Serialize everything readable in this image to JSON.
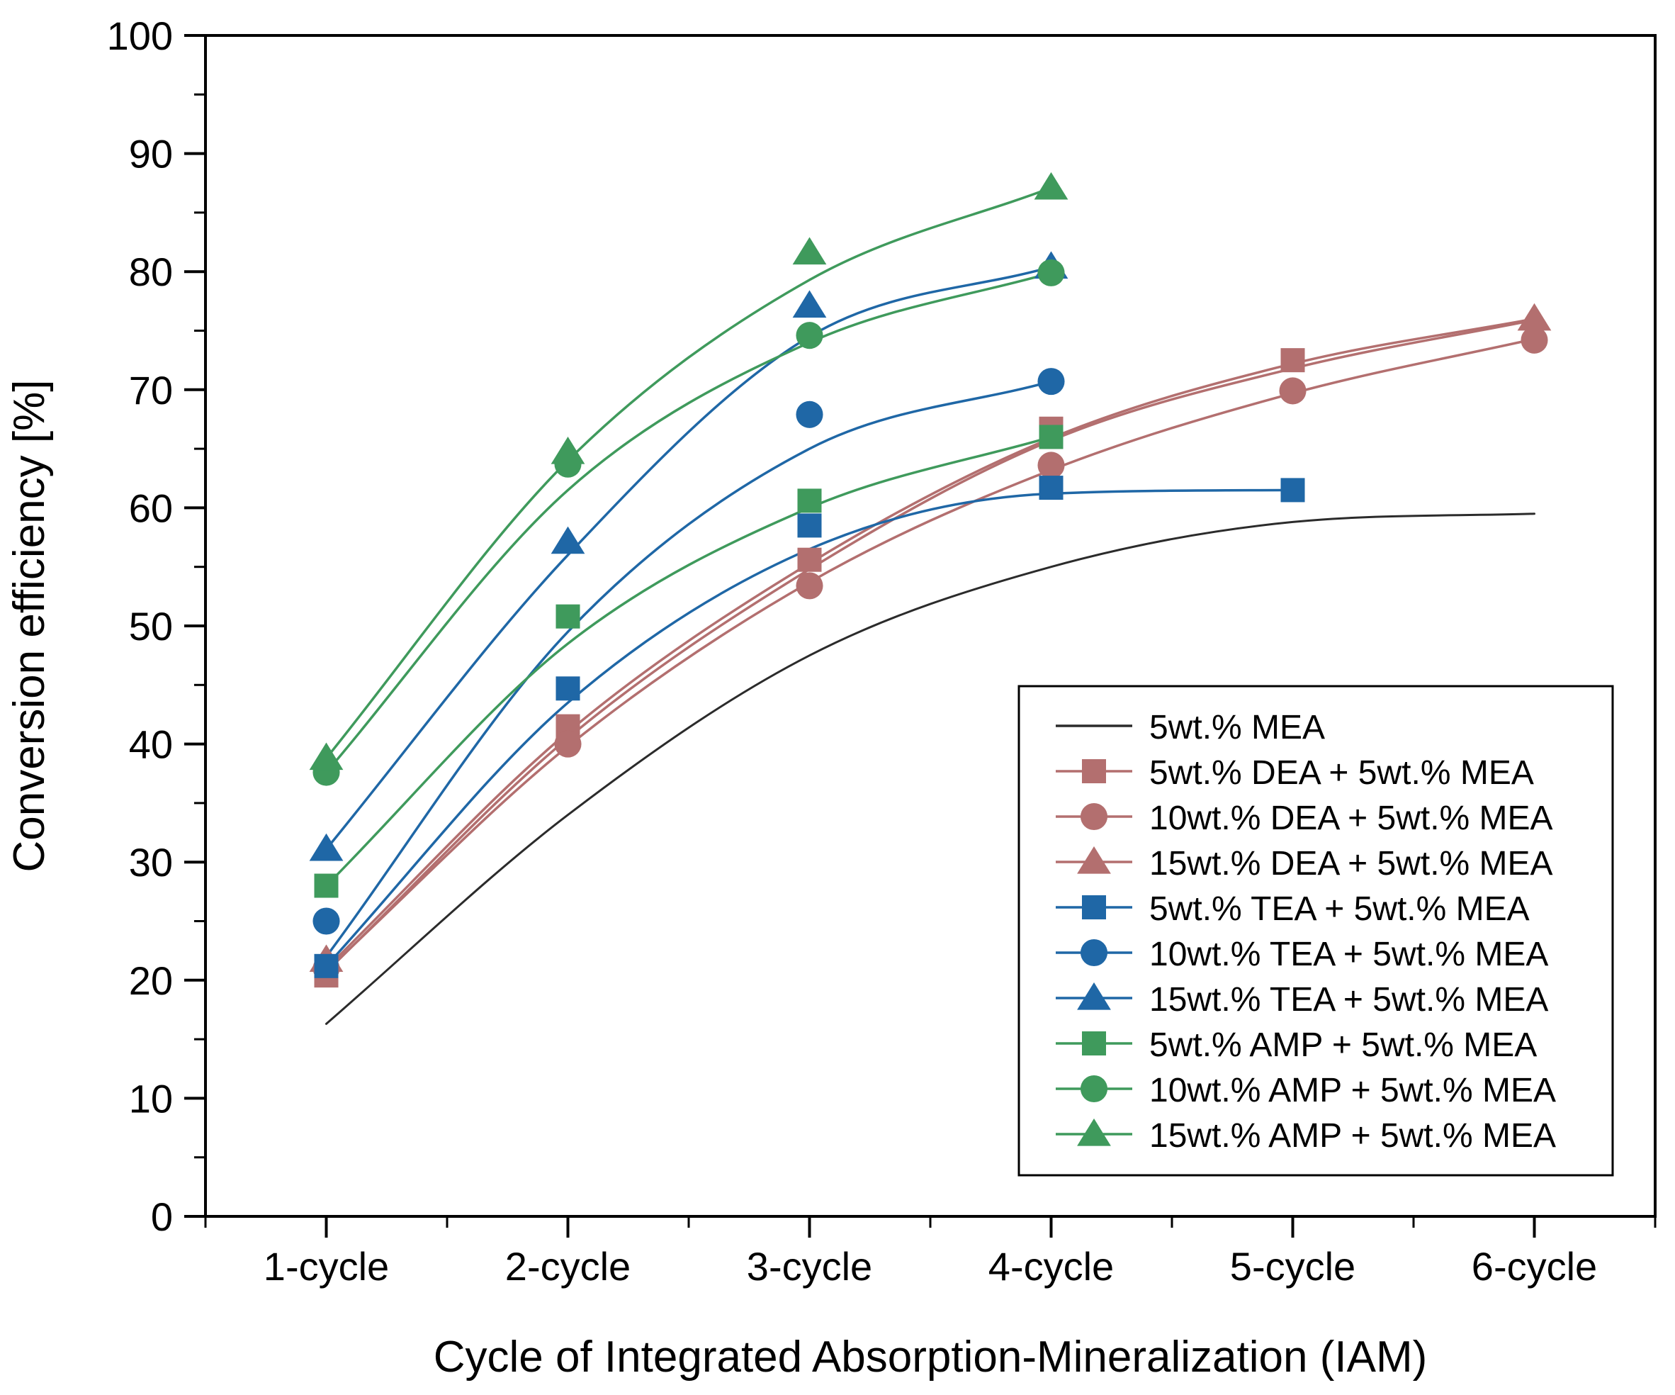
{
  "chart_data": {
    "type": "line",
    "title": "",
    "xlabel": "Cycle of Integrated Absorption-Mineralization (IAM)",
    "ylabel": "Conversion efficiency [%]",
    "categories": [
      "1-cycle",
      "2-cycle",
      "3-cycle",
      "4-cycle",
      "5-cycle",
      "6-cycle"
    ],
    "xlim": [
      0.5,
      6.5
    ],
    "ylim": [
      0,
      100
    ],
    "yticks": [
      "0",
      "10",
      "20",
      "30",
      "40",
      "50",
      "60",
      "70",
      "80",
      "90",
      "100"
    ],
    "grid": false,
    "legend_position": "bottom-right",
    "colors": {
      "black": "#2b2b2b",
      "red": "#b36f6f",
      "blue": "#1f67a6",
      "green": "#3f9a5c"
    },
    "series": [
      {
        "name": "5wt.% MEA",
        "color": "#2b2b2b",
        "marker": "none",
        "fit": [
          16.3,
          34.0,
          47.5,
          55.0,
          58.8,
          59.5
        ],
        "fit_end": 6.0
      },
      {
        "name": "5wt.% DEA + 5wt.% MEA",
        "color": "#b36f6f",
        "marker": "square",
        "x": [
          1,
          2,
          3,
          4,
          5
        ],
        "values": [
          20.4,
          41.5,
          55.6,
          66.7,
          72.5
        ],
        "fit": [
          20.7,
          40.5,
          54.8,
          65.7,
          71.8,
          75.9
        ],
        "fit_end": 6.0
      },
      {
        "name": "10wt.% DEA + 5wt.% MEA",
        "color": "#b36f6f",
        "marker": "circle",
        "x": [
          1,
          2,
          3,
          4,
          5,
          6
        ],
        "values": [
          21.0,
          40.0,
          53.4,
          63.6,
          69.9,
          74.2
        ],
        "fit": [
          20.8,
          39.8,
          53.7,
          63.2,
          69.7,
          74.3
        ],
        "fit_end": 6.0
      },
      {
        "name": "15wt.% DEA + 5wt.% MEA",
        "color": "#b36f6f",
        "marker": "triangle",
        "x": [
          1,
          6
        ],
        "values": [
          21.7,
          76.0
        ],
        "fit": [
          21.0,
          41.0,
          55.3,
          65.9,
          72.2,
          76.0
        ],
        "fit_end": 6.0
      },
      {
        "name": "5wt.% TEA + 5wt.% MEA",
        "color": "#1f67a6",
        "marker": "square",
        "x": [
          1,
          2,
          3,
          4,
          5
        ],
        "values": [
          21.2,
          44.7,
          58.5,
          61.7,
          61.5
        ],
        "fit": [
          21.2,
          43.5,
          56.5,
          61.2,
          61.5
        ],
        "fit_end": 5.0
      },
      {
        "name": "10wt.% TEA + 5wt.% MEA",
        "color": "#1f67a6",
        "marker": "circle",
        "x": [
          1,
          3,
          4
        ],
        "values": [
          25.0,
          67.9,
          70.7
        ],
        "fit": [
          22.0,
          49.5,
          65.0,
          70.7
        ],
        "fit_end": 4.0
      },
      {
        "name": "15wt.% TEA + 5wt.% MEA",
        "color": "#1f67a6",
        "marker": "triangle",
        "x": [
          1,
          2,
          3,
          4
        ],
        "values": [
          31.1,
          57.1,
          77.1,
          80.4
        ],
        "fit": [
          31.1,
          56.0,
          74.5,
          80.4
        ],
        "fit_end": 4.0
      },
      {
        "name": "5wt.% AMP + 5wt.% MEA",
        "color": "#3f9a5c",
        "marker": "square",
        "x": [
          1,
          2,
          3,
          4
        ],
        "values": [
          28.0,
          50.8,
          60.6,
          66.0
        ],
        "fit": [
          28.0,
          48.5,
          60.0,
          66.0
        ],
        "fit_end": 4.0
      },
      {
        "name": "10wt.% AMP + 5wt.% MEA",
        "color": "#3f9a5c",
        "marker": "circle",
        "x": [
          1,
          2,
          3,
          4
        ],
        "values": [
          37.6,
          63.7,
          74.6,
          79.9
        ],
        "fit": [
          37.6,
          61.5,
          74.0,
          79.9
        ],
        "fit_end": 4.0
      },
      {
        "name": "15wt.% AMP + 5wt.% MEA",
        "color": "#3f9a5c",
        "marker": "triangle",
        "x": [
          1,
          2,
          3,
          4
        ],
        "values": [
          38.8,
          64.7,
          81.6,
          87.1
        ],
        "fit": [
          38.8,
          64.0,
          79.3,
          87.1
        ],
        "fit_end": 4.0
      }
    ]
  }
}
